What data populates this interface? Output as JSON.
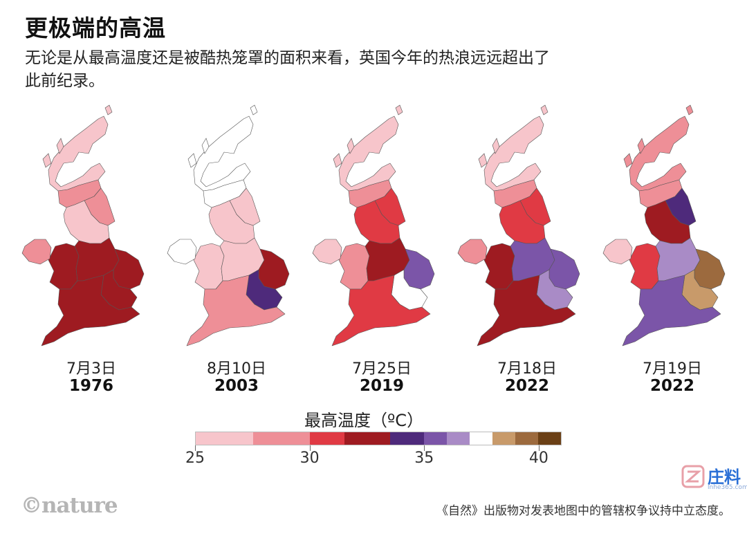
{
  "title": "更极端的高温",
  "subtitle": "无论是从最高温度还是被酷热笼罩的面积来看，英国今年的热浪远远超出了此前纪录。",
  "maps": [
    {
      "date": "7月3日",
      "year": "1976",
      "levels": {
        "north": 0,
        "wales": 3,
        "midlands": 3,
        "south": 3,
        "east": 3,
        "london": 3,
        "scotland": 0,
        "scot_south": 1,
        "northeast": 1,
        "ireland": 1
      }
    },
    {
      "date": "8月10日",
      "year": "2003",
      "levels": {
        "north": 0,
        "wales": 0,
        "midlands": 0,
        "south": 1,
        "east": 3,
        "london": 4,
        "scotland": -1,
        "scot_south": -1,
        "northeast": 0,
        "ireland": -1
      }
    },
    {
      "date": "7月25日",
      "year": "2019",
      "levels": {
        "north": 2,
        "wales": 1,
        "midlands": 3,
        "south": 2,
        "east": 5,
        "london": 7,
        "scotland": 0,
        "scot_south": 1,
        "northeast": 2,
        "ireland": 0
      }
    },
    {
      "date": "7月18日",
      "year": "2022",
      "levels": {
        "north": 2,
        "wales": 3,
        "midlands": 5,
        "south": 3,
        "east": 5,
        "london": 6,
        "scotland": 0,
        "scot_south": 1,
        "northeast": 2,
        "ireland": 1
      }
    },
    {
      "date": "7月19日",
      "year": "2022",
      "levels": {
        "north": 3,
        "wales": 2,
        "midlands": 6,
        "south": 5,
        "east": 9,
        "london": 8,
        "scotland": 1,
        "scot_south": 1,
        "northeast": 4,
        "ireland": 0
      }
    }
  ],
  "legend": {
    "title": "最高温度（ºC）",
    "colors": [
      "#f7c5cb",
      "#ee8f97",
      "#e03a44",
      "#9e1b21",
      "#4e2a7b",
      "#7b55a8",
      "#a98bc6",
      "#ffffff",
      "#c89a6a",
      "#9c6a3e",
      "#6b4016"
    ],
    "bins": [
      25,
      27.5,
      30,
      31.5,
      33.5,
      35,
      36,
      37,
      38,
      39,
      40,
      41
    ],
    "labels": [
      25,
      30,
      35,
      40
    ],
    "min": 25,
    "max": 41
  },
  "source_logo": "©nature",
  "disclaimer": "《自然》出版物对发表地图中的管辖权争议持中立态度。",
  "watermark": {
    "text": "庄料",
    "sub": "lnhe365.com"
  }
}
